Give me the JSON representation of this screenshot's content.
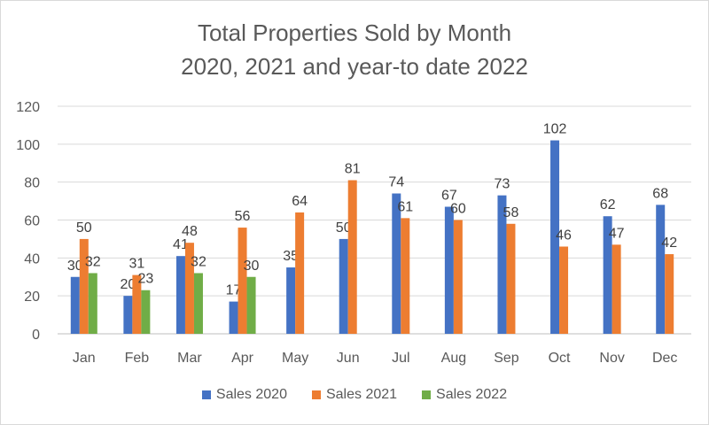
{
  "chart_data": {
    "type": "bar",
    "title": "Total Properties Sold by Month",
    "subtitle": "2020, 2021 and year-to date 2022",
    "xlabel": "",
    "ylabel": "",
    "ylim": [
      0,
      120
    ],
    "yticks": [
      0,
      20,
      40,
      60,
      80,
      100,
      120
    ],
    "grid": true,
    "legend_position": "bottom",
    "categories": [
      "Jan",
      "Feb",
      "Mar",
      "Apr",
      "May",
      "Jun",
      "Jul",
      "Aug",
      "Sep",
      "Oct",
      "Nov",
      "Dec"
    ],
    "series": [
      {
        "name": "Sales 2020",
        "color": "#4472C4",
        "values": [
          30,
          20,
          41,
          17,
          35,
          50,
          74,
          67,
          73,
          102,
          62,
          68
        ]
      },
      {
        "name": "Sales 2021",
        "color": "#ED7D31",
        "values": [
          50,
          31,
          48,
          56,
          64,
          81,
          61,
          60,
          58,
          46,
          47,
          42
        ]
      },
      {
        "name": "Sales 2022",
        "color": "#70AD47",
        "values": [
          32,
          23,
          32,
          30,
          null,
          null,
          null,
          null,
          null,
          null,
          null,
          null
        ]
      }
    ]
  }
}
